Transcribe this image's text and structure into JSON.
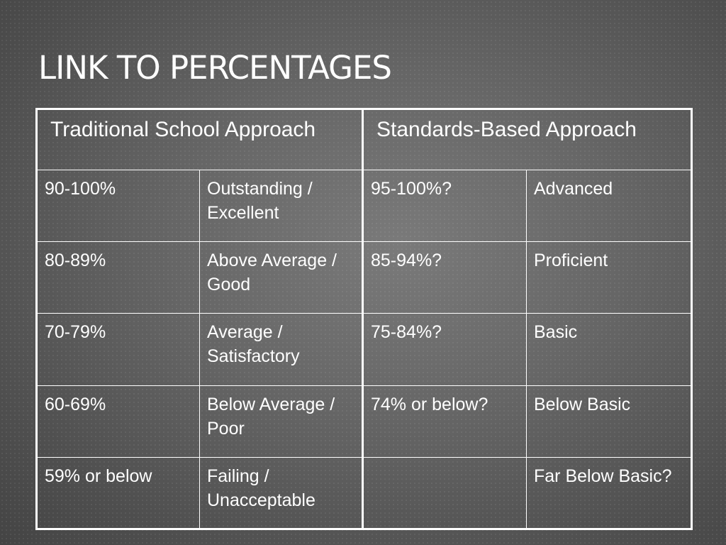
{
  "slide": {
    "title": "LINK TO PERCENTAGES"
  },
  "table": {
    "headers": [
      "Traditional School Approach",
      "Standards-Based Approach"
    ],
    "rows": [
      [
        "90-100%",
        "Outstanding / Excellent",
        "95-100%?",
        "Advanced"
      ],
      [
        "80-89%",
        "Above Average / Good",
        "85-94%?",
        "Proficient"
      ],
      [
        "70-79%",
        "Average / Satisfactory",
        "75-84%?",
        "Basic"
      ],
      [
        "60-69%",
        "Below Average / Poor",
        "74% or below?",
        "Below Basic"
      ],
      [
        "59% or below",
        "Failing / Unacceptable",
        "",
        "Far Below Basic?"
      ]
    ]
  }
}
